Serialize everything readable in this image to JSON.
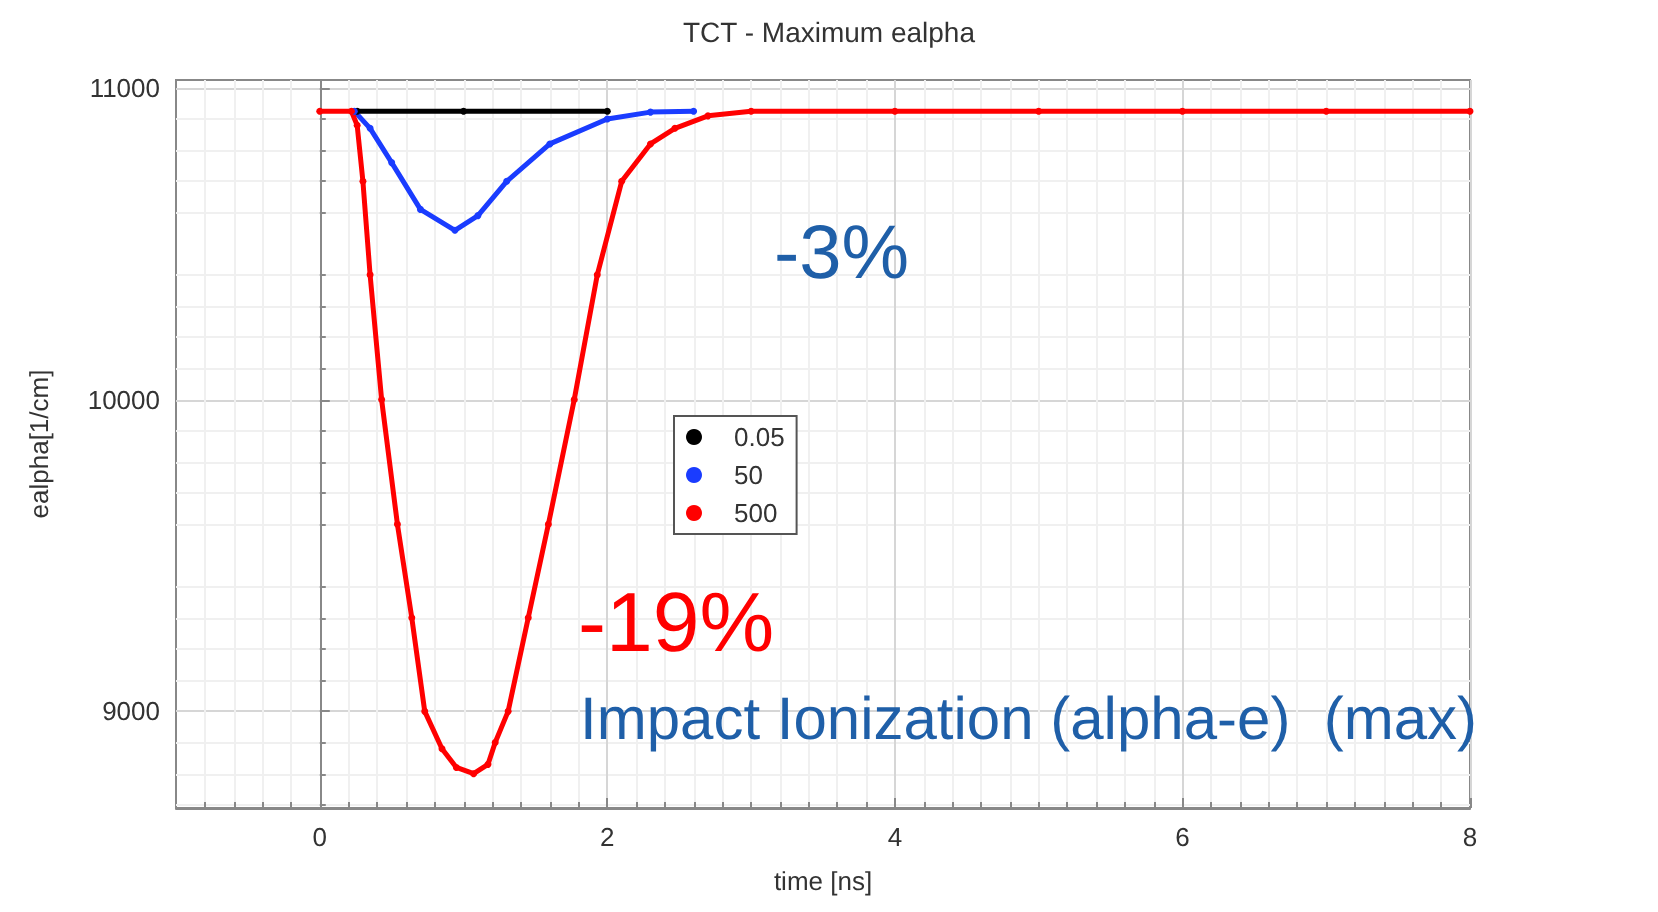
{
  "chart_data": {
    "type": "line",
    "title": "TCT - Maximum ealpha",
    "xlabel": "time [ns]",
    "ylabel": "ealpha[1/cm]",
    "xlim": [
      -1,
      8
    ],
    "xticks": [
      0,
      2,
      4,
      6,
      8
    ],
    "ylim": [
      8690,
      11025
    ],
    "yticks": [
      9000,
      10000,
      11000
    ],
    "grid": true,
    "legend": "center",
    "marker": "circle",
    "line_style": "solid",
    "annotations": [
      "-3%",
      "-19%",
      "Impact Ionization (alpha-e)  (max)"
    ],
    "series": [
      {
        "name": "0.05",
        "color": "#000000",
        "x": [
          0.26,
          1,
          2
        ],
        "values": [
          10925,
          10925,
          10925
        ]
      },
      {
        "name": "50",
        "color": "#1a3cff",
        "x": [
          0.24,
          0.35,
          0.5,
          0.7,
          0.94,
          1.1,
          1.3,
          1.6,
          2.0,
          2.3,
          2.6
        ],
        "values": [
          10925,
          10870,
          10760,
          10610,
          10543,
          10590,
          10700,
          10820,
          10900,
          10922,
          10925
        ]
      },
      {
        "name": "500",
        "color": "#ff0000",
        "x": [
          0,
          0.22,
          0.26,
          0.3,
          0.35,
          0.43,
          0.54,
          0.64,
          0.73,
          0.85,
          0.95,
          1.07,
          1.17,
          1.22,
          1.31,
          1.45,
          1.59,
          1.77,
          1.93,
          2.1,
          2.3,
          2.47,
          2.7,
          3.0,
          4,
          5,
          6,
          7,
          8
        ],
        "values": [
          10925,
          10925,
          10880,
          10700,
          10400,
          10000,
          9600,
          9300,
          9000,
          8880,
          8820,
          8800,
          8830,
          8900,
          9000,
          9300,
          9600,
          10000,
          10400,
          10700,
          10820,
          10870,
          10910,
          10925,
          10925,
          10925,
          10925,
          10925,
          10925
        ]
      }
    ]
  }
}
